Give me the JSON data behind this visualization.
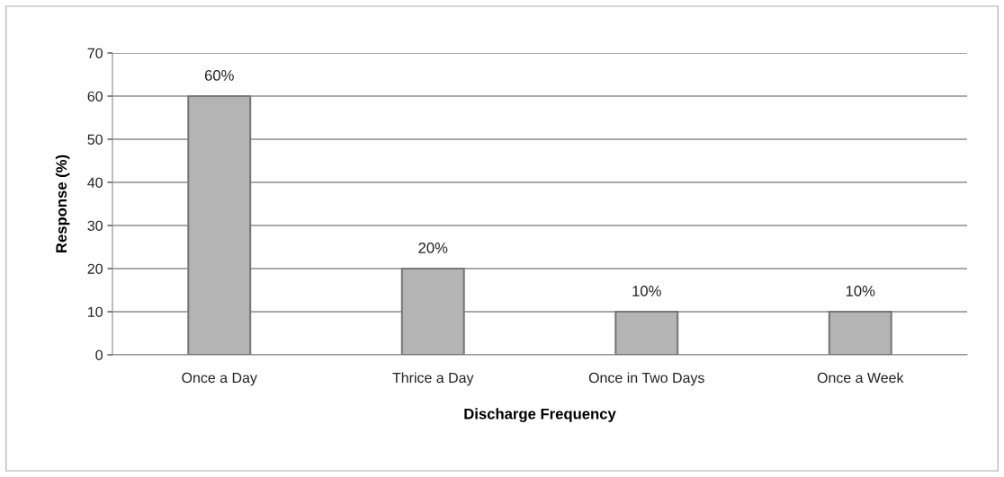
{
  "chart_data": {
    "type": "bar",
    "xlabel": "Discharge Frequency",
    "ylabel": "Response (%)",
    "categories": [
      "Once a Day",
      "Thrice a Day",
      "Once in Two Days",
      "Once a Week"
    ],
    "values": [
      60,
      20,
      10,
      10
    ],
    "color": "#b4b4b4",
    "value_labels": [
      "60%",
      "20%",
      "10%",
      "10%"
    ],
    "ylim": [
      0,
      70
    ],
    "yticks": [
      0,
      10,
      20,
      30,
      40,
      50,
      60,
      70
    ],
    "grid": "y"
  }
}
